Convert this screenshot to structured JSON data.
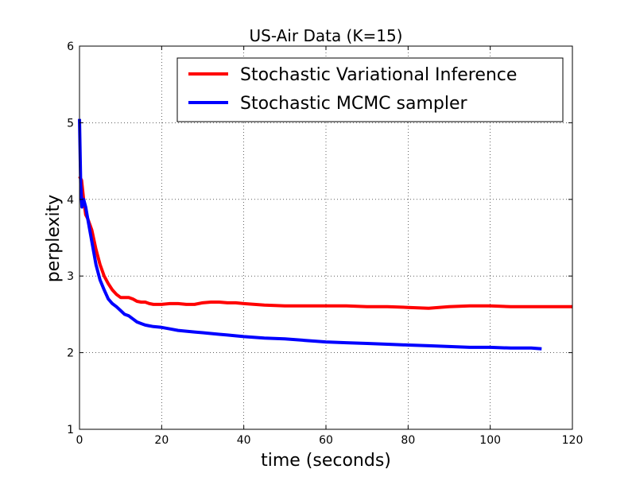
{
  "chart_data": {
    "type": "line",
    "title": "US-Air Data (K=15)",
    "xlabel": "time (seconds)",
    "ylabel": "perplexity",
    "xlim": [
      0,
      120
    ],
    "ylim": [
      1,
      6
    ],
    "xticks": [
      0,
      20,
      40,
      60,
      80,
      100,
      120
    ],
    "yticks": [
      1,
      2,
      3,
      4,
      5,
      6
    ],
    "grid": true,
    "legend_position": "top-right",
    "series": [
      {
        "name": "Stochastic Variational Inference",
        "color": "#ff0000",
        "x": [
          0,
          0.5,
          1,
          1.5,
          2,
          3,
          4,
          5,
          6,
          7,
          8,
          9,
          10,
          11,
          12,
          13,
          14,
          15,
          16,
          17,
          18,
          20,
          22,
          24,
          26,
          28,
          30,
          32,
          34,
          36,
          38,
          40,
          45,
          50,
          55,
          60,
          65,
          70,
          75,
          80,
          85,
          90,
          95,
          100,
          105,
          110,
          115,
          120
        ],
        "y": [
          4.3,
          4.25,
          4.0,
          3.8,
          3.75,
          3.6,
          3.35,
          3.15,
          3.0,
          2.9,
          2.82,
          2.76,
          2.72,
          2.72,
          2.72,
          2.7,
          2.67,
          2.66,
          2.66,
          2.64,
          2.63,
          2.63,
          2.64,
          2.64,
          2.63,
          2.63,
          2.65,
          2.66,
          2.66,
          2.65,
          2.65,
          2.64,
          2.62,
          2.61,
          2.61,
          2.61,
          2.61,
          2.6,
          2.6,
          2.59,
          2.58,
          2.6,
          2.61,
          2.61,
          2.6,
          2.6,
          2.6,
          2.6
        ]
      },
      {
        "name": "Stochastic MCMC sampler",
        "color": "#0000ff",
        "x": [
          0,
          0.3,
          0.6,
          1,
          1.5,
          2,
          3,
          4,
          5,
          6,
          7,
          8,
          9,
          10,
          11,
          12,
          13,
          14,
          15,
          16,
          17,
          18,
          20,
          22,
          24,
          26,
          28,
          30,
          32,
          34,
          36,
          38,
          40,
          45,
          50,
          55,
          60,
          65,
          70,
          75,
          80,
          85,
          90,
          95,
          100,
          105,
          110,
          112.5
        ],
        "y": [
          5.05,
          4.2,
          3.9,
          4.0,
          3.9,
          3.75,
          3.45,
          3.15,
          2.95,
          2.82,
          2.7,
          2.64,
          2.6,
          2.55,
          2.5,
          2.48,
          2.44,
          2.4,
          2.38,
          2.36,
          2.35,
          2.34,
          2.33,
          2.31,
          2.29,
          2.28,
          2.27,
          2.26,
          2.25,
          2.24,
          2.23,
          2.22,
          2.21,
          2.19,
          2.18,
          2.16,
          2.14,
          2.13,
          2.12,
          2.11,
          2.1,
          2.09,
          2.08,
          2.07,
          2.07,
          2.06,
          2.06,
          2.05
        ]
      }
    ]
  }
}
